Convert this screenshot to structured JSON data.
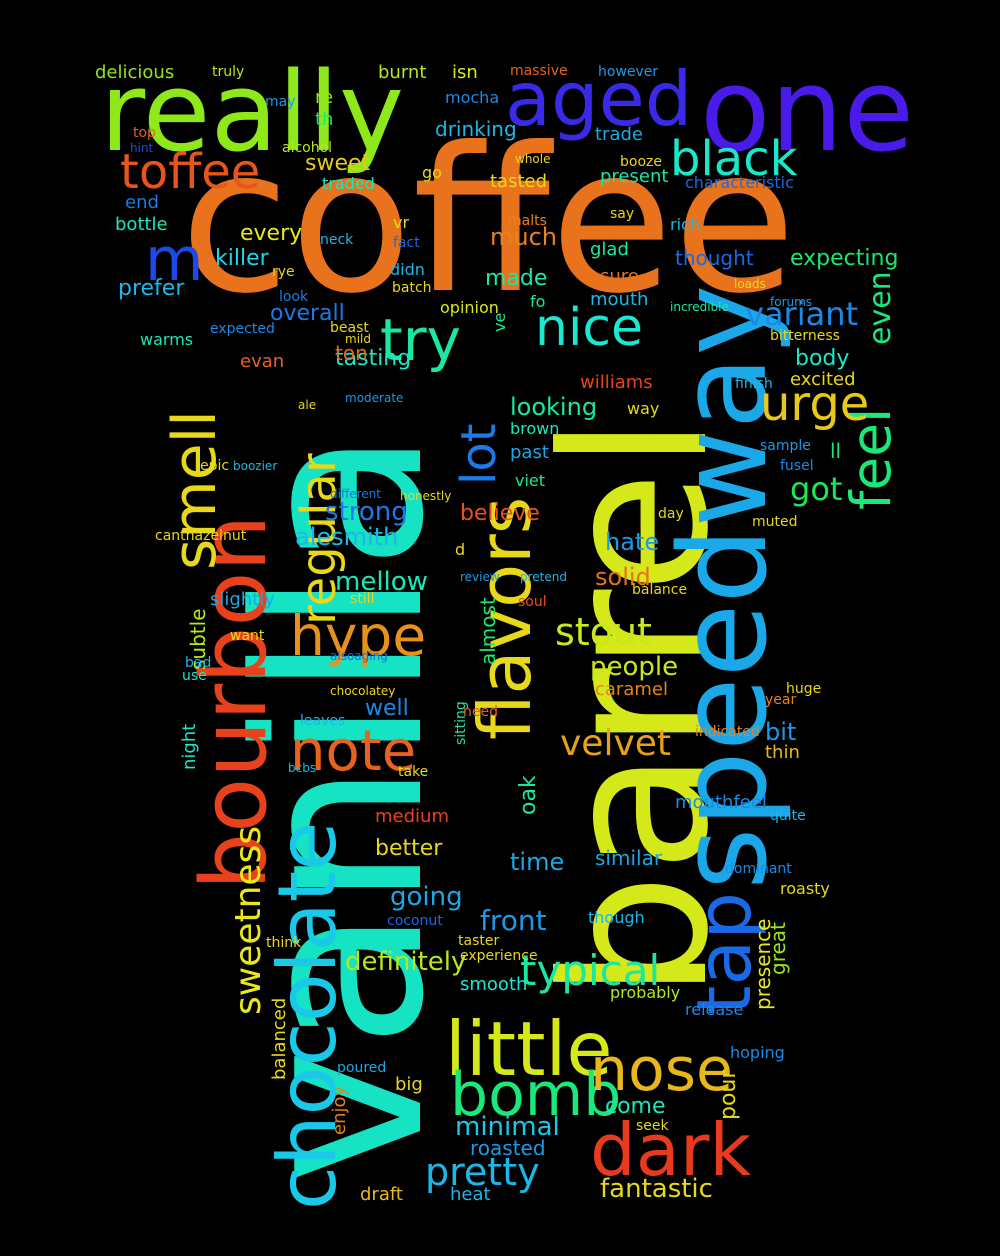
{
  "words": [
    {
      "text": "coffee",
      "color": "#e8731c"
    },
    {
      "text": "vanilla",
      "color": "#15e3c3"
    },
    {
      "text": "barrel",
      "color": "#d4e81a"
    },
    {
      "text": "speedway",
      "color": "#1aa8e8"
    },
    {
      "text": "bourbon",
      "color": "#e8421c"
    },
    {
      "text": "chocolate",
      "color": "#1ac8e8"
    },
    {
      "text": "really",
      "color": "#8ee81a"
    },
    {
      "text": "one",
      "color": "#4a1ae8"
    },
    {
      "text": "aged",
      "color": "#3a2ae8"
    },
    {
      "text": "flavors",
      "color": "#e8d81a"
    },
    {
      "text": "tap",
      "color": "#1a6ae8"
    },
    {
      "text": "little",
      "color": "#d4e81a"
    },
    {
      "text": "dark",
      "color": "#e83a1c"
    },
    {
      "text": "smell",
      "color": "#e8d81a"
    },
    {
      "text": "toffee",
      "color": "#e8551c"
    },
    {
      "text": "black",
      "color": "#1ae8c8"
    },
    {
      "text": "try",
      "color": "#1ae8a0"
    },
    {
      "text": "nice",
      "color": "#1ae8d0"
    },
    {
      "text": "bomb",
      "color": "#1ae87a"
    },
    {
      "text": "nose",
      "color": "#e8b81a"
    },
    {
      "text": "note",
      "color": "#e8621c"
    },
    {
      "text": "hype",
      "color": "#e8921c"
    },
    {
      "text": "feel",
      "color": "#1ae87a"
    },
    {
      "text": "urge",
      "color": "#e8c81a"
    },
    {
      "text": "regular",
      "color": "#e8d81a"
    },
    {
      "text": "lot",
      "color": "#1a7ae8"
    },
    {
      "text": "sweetness",
      "color": "#e8e81a"
    },
    {
      "text": "typical",
      "color": "#1ae8a0"
    },
    {
      "text": "pretty",
      "color": "#1ab8e8"
    },
    {
      "text": "stout",
      "color": "#c8e81a"
    },
    {
      "text": "velvet",
      "color": "#e8a21a"
    },
    {
      "text": "variant",
      "color": "#1a8ae8"
    },
    {
      "text": "even",
      "color": "#1ae87a"
    },
    {
      "text": "m",
      "color": "#1a4ae8"
    },
    {
      "text": "got",
      "color": "#1ae85a"
    },
    {
      "text": "fantastic",
      "color": "#e8d81a"
    },
    {
      "text": "minimal",
      "color": "#1ac8e8"
    },
    {
      "text": "definitely",
      "color": "#b8e81a"
    },
    {
      "text": "front",
      "color": "#1a9ae8"
    },
    {
      "text": "going",
      "color": "#1aa8e8"
    },
    {
      "text": "strong",
      "color": "#1a7ae8"
    },
    {
      "text": "mellow",
      "color": "#1ae8b8"
    },
    {
      "text": "alesmith",
      "color": "#1ab8e8"
    },
    {
      "text": "tasting",
      "color": "#1ae8c8"
    },
    {
      "text": "looking",
      "color": "#1ae8a0"
    },
    {
      "text": "people",
      "color": "#c8e81a"
    },
    {
      "text": "solid",
      "color": "#e8721c"
    },
    {
      "text": "hate",
      "color": "#1a9ae8"
    },
    {
      "text": "believe",
      "color": "#e8521c"
    },
    {
      "text": "killer",
      "color": "#1ad8e8"
    },
    {
      "text": "every",
      "color": "#e8e81a"
    },
    {
      "text": "prefer",
      "color": "#1ab8e8"
    },
    {
      "text": "overall",
      "color": "#1a7ae8"
    },
    {
      "text": "sweet",
      "color": "#e8c81a"
    },
    {
      "text": "much",
      "color": "#e8821c"
    },
    {
      "text": "made",
      "color": "#1ae8a8"
    },
    {
      "text": "expecting",
      "color": "#1ae86a"
    },
    {
      "text": "thought",
      "color": "#1a6ae8"
    },
    {
      "text": "body",
      "color": "#1ae8c8"
    },
    {
      "text": "excited",
      "color": "#e8d81a"
    },
    {
      "text": "better",
      "color": "#e8d81a"
    },
    {
      "text": "oak",
      "color": "#1ae89a"
    },
    {
      "text": "time",
      "color": "#1aa8e8"
    },
    {
      "text": "similar",
      "color": "#1aa8e8"
    },
    {
      "text": "mouthfeel",
      "color": "#1a8ae8"
    },
    {
      "text": "bit",
      "color": "#1a9ae8"
    },
    {
      "text": "thin",
      "color": "#e8b81a"
    },
    {
      "text": "pour",
      "color": "#e8d81a"
    },
    {
      "text": "presence",
      "color": "#e8e81a"
    },
    {
      "text": "great",
      "color": "#9ae81a"
    },
    {
      "text": "come",
      "color": "#1ae8b8"
    },
    {
      "text": "roasted",
      "color": "#1a9ae8"
    },
    {
      "text": "draft",
      "color": "#e8b81a"
    },
    {
      "text": "heat",
      "color": "#1ab8e8"
    },
    {
      "text": "delicious",
      "color": "#8ee81a"
    },
    {
      "text": "drinking",
      "color": "#1ab8e8"
    },
    {
      "text": "tasted",
      "color": "#e8d81a"
    },
    {
      "text": "present",
      "color": "#1ae8a0"
    },
    {
      "text": "bottle",
      "color": "#1ae8b8"
    },
    {
      "text": "end",
      "color": "#1a7ae8"
    },
    {
      "text": "ton",
      "color": "#e8621c"
    },
    {
      "text": "williams",
      "color": "#e8421c"
    },
    {
      "text": "caramel",
      "color": "#e8821c"
    },
    {
      "text": "medium",
      "color": "#e8421c"
    },
    {
      "text": "balanced",
      "color": "#e8d81a"
    },
    {
      "text": "big",
      "color": "#e8d81a"
    },
    {
      "text": "enjoy",
      "color": "#e8821c"
    },
    {
      "text": "smooth",
      "color": "#1ae8d8"
    },
    {
      "text": "probably",
      "color": "#b8e81a"
    },
    {
      "text": "release",
      "color": "#1a8ae8"
    },
    {
      "text": "hoping",
      "color": "#1a8ae8"
    },
    {
      "text": "subtle",
      "color": "#b8e81a"
    },
    {
      "text": "slightly",
      "color": "#1aa8e8"
    },
    {
      "text": "night",
      "color": "#1ae8c8"
    },
    {
      "text": "well",
      "color": "#1a8ae8"
    },
    {
      "text": "sure",
      "color": "#e8721c"
    },
    {
      "text": "glad",
      "color": "#1ae8a0"
    },
    {
      "text": "mouth",
      "color": "#1ab8e8"
    },
    {
      "text": "burnt",
      "color": "#b8e81a"
    },
    {
      "text": "isn",
      "color": "#d8e81a"
    },
    {
      "text": "mocha",
      "color": "#1a8ae8"
    },
    {
      "text": "trade",
      "color": "#1aa8e8"
    },
    {
      "text": "re",
      "color": "#8ee81a"
    },
    {
      "text": "th",
      "color": "#1ae86a"
    },
    {
      "text": "characteristic",
      "color": "#1a6ae8"
    },
    {
      "text": "opinion",
      "color": "#d8e81a"
    },
    {
      "text": "rich",
      "color": "#1ab8e8"
    },
    {
      "text": "ll",
      "color": "#1ae85a"
    },
    {
      "text": "past",
      "color": "#1aa8e8"
    },
    {
      "text": "viet",
      "color": "#1ae88a"
    },
    {
      "text": "brown",
      "color": "#1ae8b8"
    },
    {
      "text": "warms",
      "color": "#1ae8b8"
    },
    {
      "text": "evan",
      "color": "#e8621c"
    },
    {
      "text": "expected",
      "color": "#1a8ae8"
    },
    {
      "text": "rye",
      "color": "#e8d81a"
    },
    {
      "text": "neck",
      "color": "#1ab8e8"
    },
    {
      "text": "fact",
      "color": "#1a6ae8"
    },
    {
      "text": "didn",
      "color": "#1ab8e8"
    },
    {
      "text": "vr",
      "color": "#e8d81a"
    },
    {
      "text": "fo",
      "color": "#1ae8a0"
    },
    {
      "text": "ve",
      "color": "#1ae88a"
    },
    {
      "text": "coconut",
      "color": "#1a6ae8"
    },
    {
      "text": "taster",
      "color": "#e8d81a"
    },
    {
      "text": "experience",
      "color": "#e8d81a"
    },
    {
      "text": "though",
      "color": "#1ab8e8"
    },
    {
      "text": "dominant",
      "color": "#1a8ae8"
    },
    {
      "text": "roasty",
      "color": "#e8d81a"
    },
    {
      "text": "seek",
      "color": "#e8d81a"
    },
    {
      "text": "poured",
      "color": "#1aa8e8"
    },
    {
      "text": "traded",
      "color": "#1ae8b8"
    },
    {
      "text": "alcohol",
      "color": "#b8e81a"
    },
    {
      "text": "go",
      "color": "#e8d81a"
    },
    {
      "text": "sample",
      "color": "#1a9ae8"
    },
    {
      "text": "fusel",
      "color": "#1a8ae8"
    },
    {
      "text": "quite",
      "color": "#1ab8e8"
    },
    {
      "text": "muted",
      "color": "#e8d81a"
    },
    {
      "text": "huge",
      "color": "#e8d81a"
    },
    {
      "text": "year",
      "color": "#e8821c"
    },
    {
      "text": "take",
      "color": "#e8d81a"
    },
    {
      "text": "bcbs",
      "color": "#1ab8e8"
    },
    {
      "text": "think",
      "color": "#e8d81a"
    },
    {
      "text": "alsoaging",
      "color": "#1a6ae8"
    },
    {
      "text": "leaves",
      "color": "#1ab8e8"
    },
    {
      "text": "chocolatey",
      "color": "#e8d81a"
    },
    {
      "text": "want",
      "color": "#e8d81a"
    },
    {
      "text": "bad",
      "color": "#1ab8e8"
    },
    {
      "text": "use",
      "color": "#1ae8c8"
    },
    {
      "text": "canthazelnut",
      "color": "#e8d81a"
    },
    {
      "text": "different",
      "color": "#1a7ae8"
    },
    {
      "text": "honestly",
      "color": "#e8d81a"
    },
    {
      "text": "epic",
      "color": "#e8d81a"
    },
    {
      "text": "boozier",
      "color": "#1ab8e8"
    },
    {
      "text": "review",
      "color": "#1a9ae8"
    },
    {
      "text": "pretend",
      "color": "#1ab8e8"
    },
    {
      "text": "soul",
      "color": "#e8521c"
    },
    {
      "text": "still",
      "color": "#e8d81a"
    },
    {
      "text": "balance",
      "color": "#e8d81a"
    },
    {
      "text": "top",
      "color": "#e8621c"
    },
    {
      "text": "hint",
      "color": "#1a4ae8"
    },
    {
      "text": "truly",
      "color": "#b8e81a"
    },
    {
      "text": "may",
      "color": "#1a9ae8"
    },
    {
      "text": "however",
      "color": "#1a9ae8"
    },
    {
      "text": "massive",
      "color": "#e8621c"
    },
    {
      "text": "booze",
      "color": "#e8d81a"
    },
    {
      "text": "whole",
      "color": "#e8d81a"
    },
    {
      "text": "say",
      "color": "#e8d81a"
    },
    {
      "text": "malts",
      "color": "#e8821c"
    },
    {
      "text": "loads",
      "color": "#e8d81a"
    },
    {
      "text": "bitterness",
      "color": "#e8d81a"
    },
    {
      "text": "finish",
      "color": "#1ab8e8"
    },
    {
      "text": "way",
      "color": "#e8d81a"
    },
    {
      "text": "d",
      "color": "#e8d81a"
    },
    {
      "text": "day",
      "color": "#e8d81a"
    },
    {
      "text": "almost",
      "color": "#1ae86a"
    },
    {
      "text": "sitting",
      "color": "#1ae8a0"
    },
    {
      "text": "indicated",
      "color": "#e8821c"
    },
    {
      "text": "batch",
      "color": "#e8d81a"
    },
    {
      "text": "look",
      "color": "#1a7ae8"
    },
    {
      "text": "ale",
      "color": "#e8d81a"
    },
    {
      "text": "beast",
      "color": "#e8d81a"
    },
    {
      "text": "need",
      "color": "#e8621c"
    },
    {
      "text": "incredible",
      "color": "#1ae8a0"
    },
    {
      "text": "forums",
      "color": "#1a9ae8"
    },
    {
      "text": "mild",
      "color": "#e8d81a"
    },
    {
      "text": "moderate",
      "color": "#1a9ae8"
    }
  ]
}
